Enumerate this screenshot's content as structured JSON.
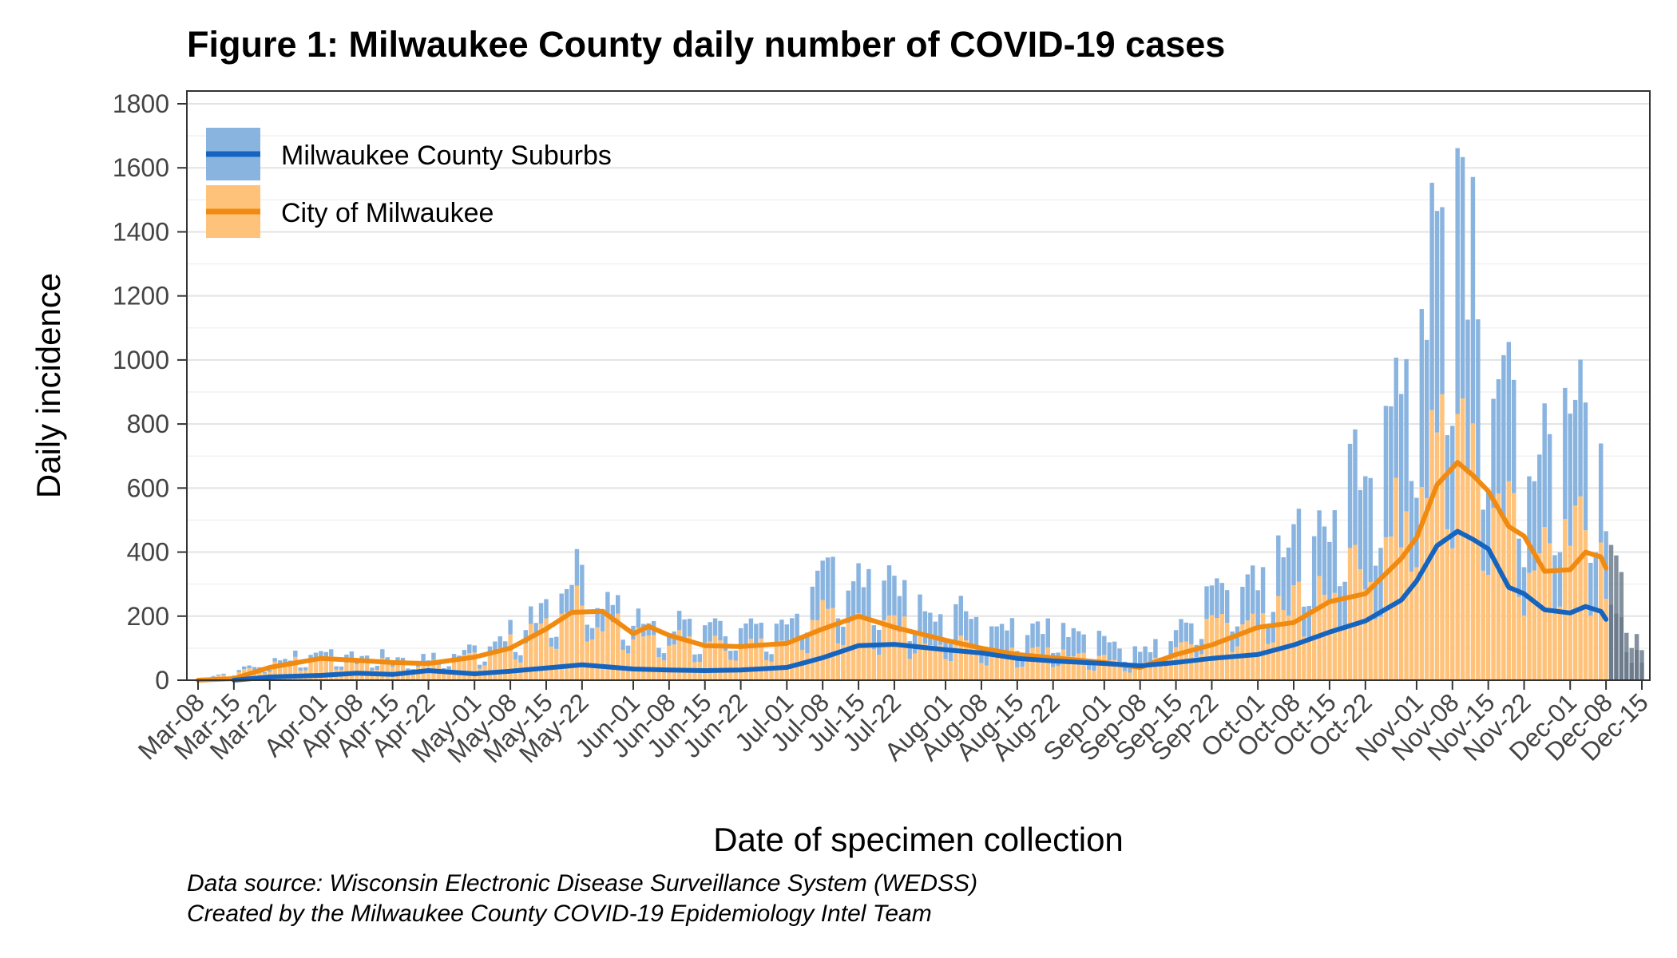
{
  "chart_data": {
    "type": "bar",
    "title": "Figure 1: Milwaukee County daily number of COVID-19 cases",
    "xlabel": "Date of specimen collection",
    "ylabel": "Daily incidence",
    "ylim": [
      0,
      1850
    ],
    "yticks": [
      0,
      200,
      400,
      600,
      800,
      1000,
      1200,
      1400,
      1600,
      1800
    ],
    "x_start": "2020-03-08",
    "x_end": "2020-12-15",
    "xtick_labels": [
      "Mar-08",
      "Mar-15",
      "Mar-22",
      "Apr-01",
      "Apr-08",
      "Apr-15",
      "Apr-22",
      "May-01",
      "May-08",
      "May-15",
      "May-22",
      "Jun-01",
      "Jun-08",
      "Jun-15",
      "Jun-22",
      "Jul-01",
      "Jul-08",
      "Jul-15",
      "Jul-22",
      "Aug-01",
      "Aug-08",
      "Aug-15",
      "Aug-22",
      "Sep-01",
      "Sep-08",
      "Sep-15",
      "Sep-22",
      "Oct-01",
      "Oct-08",
      "Oct-15",
      "Oct-22",
      "Nov-01",
      "Nov-08",
      "Nov-15",
      "Nov-22",
      "Dec-01",
      "Dec-08",
      "Dec-15"
    ],
    "stacked": true,
    "legend_position": "top-left",
    "grid": true,
    "series": [
      {
        "name": "Milwaukee County Suburbs",
        "color": "#1565c0",
        "bar_color": "#8ab4e0",
        "daily_control_points": [
          [
            "2020-03-08",
            0
          ],
          [
            "2020-03-20",
            8
          ],
          [
            "2020-03-28",
            18
          ],
          [
            "2020-04-08",
            22
          ],
          [
            "2020-04-20",
            15
          ],
          [
            "2020-05-01",
            18
          ],
          [
            "2020-05-10",
            38
          ],
          [
            "2020-05-18",
            70
          ],
          [
            "2020-05-22",
            90
          ],
          [
            "2020-06-01",
            40
          ],
          [
            "2020-06-15",
            45
          ],
          [
            "2020-07-01",
            50
          ],
          [
            "2020-07-08",
            130
          ],
          [
            "2020-07-15",
            120
          ],
          [
            "2020-07-22",
            115
          ],
          [
            "2020-08-01",
            100
          ],
          [
            "2020-08-15",
            75
          ],
          [
            "2020-09-01",
            55
          ],
          [
            "2020-09-08",
            40
          ],
          [
            "2020-09-15",
            60
          ],
          [
            "2020-09-22",
            90
          ],
          [
            "2020-10-01",
            110
          ],
          [
            "2020-10-08",
            180
          ],
          [
            "2020-10-15",
            220
          ],
          [
            "2020-10-22",
            300
          ],
          [
            "2020-10-29",
            400
          ],
          [
            "2020-11-02",
            520
          ],
          [
            "2020-11-06",
            600
          ],
          [
            "2020-11-10",
            650
          ],
          [
            "2020-11-13",
            450
          ],
          [
            "2020-11-18",
            350
          ],
          [
            "2020-11-25",
            300
          ],
          [
            "2020-12-01",
            320
          ],
          [
            "2020-12-06",
            290
          ],
          [
            "2020-12-10",
            120
          ],
          [
            "2020-12-15",
            40
          ]
        ],
        "avg_line": [
          [
            "2020-03-15",
            0
          ],
          [
            "2020-03-22",
            10
          ],
          [
            "2020-04-01",
            15
          ],
          [
            "2020-04-08",
            22
          ],
          [
            "2020-04-15",
            18
          ],
          [
            "2020-04-22",
            30
          ],
          [
            "2020-05-01",
            20
          ],
          [
            "2020-05-08",
            28
          ],
          [
            "2020-05-15",
            38
          ],
          [
            "2020-05-22",
            48
          ],
          [
            "2020-06-01",
            35
          ],
          [
            "2020-06-08",
            32
          ],
          [
            "2020-06-15",
            30
          ],
          [
            "2020-06-22",
            32
          ],
          [
            "2020-07-01",
            40
          ],
          [
            "2020-07-08",
            70
          ],
          [
            "2020-07-15",
            108
          ],
          [
            "2020-07-22",
            112
          ],
          [
            "2020-08-01",
            95
          ],
          [
            "2020-08-08",
            85
          ],
          [
            "2020-08-15",
            68
          ],
          [
            "2020-08-22",
            60
          ],
          [
            "2020-09-01",
            52
          ],
          [
            "2020-09-08",
            45
          ],
          [
            "2020-09-15",
            55
          ],
          [
            "2020-09-22",
            68
          ],
          [
            "2020-10-01",
            80
          ],
          [
            "2020-10-08",
            110
          ],
          [
            "2020-10-15",
            150
          ],
          [
            "2020-10-22",
            185
          ],
          [
            "2020-10-29",
            250
          ],
          [
            "2020-11-01",
            310
          ],
          [
            "2020-11-05",
            420
          ],
          [
            "2020-11-09",
            465
          ],
          [
            "2020-11-12",
            440
          ],
          [
            "2020-11-15",
            410
          ],
          [
            "2020-11-19",
            290
          ],
          [
            "2020-11-22",
            270
          ],
          [
            "2020-11-26",
            220
          ],
          [
            "2020-12-01",
            210
          ],
          [
            "2020-12-04",
            230
          ],
          [
            "2020-12-07",
            215
          ],
          [
            "2020-12-08",
            190
          ]
        ]
      },
      {
        "name": "City of Milwaukee",
        "color": "#f08a10",
        "bar_color": "#ffc27a",
        "daily_control_points": [
          [
            "2020-03-08",
            0
          ],
          [
            "2020-03-18",
            30
          ],
          [
            "2020-03-28",
            60
          ],
          [
            "2020-04-08",
            55
          ],
          [
            "2020-04-20",
            45
          ],
          [
            "2020-05-01",
            65
          ],
          [
            "2020-05-10",
            110
          ],
          [
            "2020-05-18",
            200
          ],
          [
            "2020-05-22",
            220
          ],
          [
            "2020-06-01",
            150
          ],
          [
            "2020-06-15",
            100
          ],
          [
            "2020-07-01",
            110
          ],
          [
            "2020-07-08",
            210
          ],
          [
            "2020-07-15",
            180
          ],
          [
            "2020-07-22",
            150
          ],
          [
            "2020-08-01",
            110
          ],
          [
            "2020-08-15",
            85
          ],
          [
            "2020-09-01",
            60
          ],
          [
            "2020-09-08",
            40
          ],
          [
            "2020-09-15",
            100
          ],
          [
            "2020-09-22",
            160
          ],
          [
            "2020-10-01",
            180
          ],
          [
            "2020-10-08",
            230
          ],
          [
            "2020-10-15",
            260
          ],
          [
            "2020-10-22",
            330
          ],
          [
            "2020-10-29",
            500
          ],
          [
            "2020-11-02",
            620
          ],
          [
            "2020-11-06",
            750
          ],
          [
            "2020-11-10",
            820
          ],
          [
            "2020-11-13",
            650
          ],
          [
            "2020-11-18",
            500
          ],
          [
            "2020-11-25",
            380
          ],
          [
            "2020-12-01",
            420
          ],
          [
            "2020-12-06",
            400
          ],
          [
            "2020-12-10",
            200
          ],
          [
            "2020-12-15",
            60
          ]
        ],
        "avg_line": [
          [
            "2020-03-08",
            0
          ],
          [
            "2020-03-15",
            5
          ],
          [
            "2020-03-22",
            40
          ],
          [
            "2020-04-01",
            68
          ],
          [
            "2020-04-08",
            62
          ],
          [
            "2020-04-15",
            55
          ],
          [
            "2020-04-22",
            52
          ],
          [
            "2020-05-01",
            72
          ],
          [
            "2020-05-08",
            100
          ],
          [
            "2020-05-15",
            160
          ],
          [
            "2020-05-20",
            212
          ],
          [
            "2020-05-26",
            215
          ],
          [
            "2020-06-01",
            145
          ],
          [
            "2020-06-04",
            168
          ],
          [
            "2020-06-08",
            140
          ],
          [
            "2020-06-15",
            108
          ],
          [
            "2020-06-22",
            105
          ],
          [
            "2020-07-01",
            115
          ],
          [
            "2020-07-08",
            160
          ],
          [
            "2020-07-15",
            200
          ],
          [
            "2020-07-22",
            165
          ],
          [
            "2020-08-01",
            125
          ],
          [
            "2020-08-08",
            100
          ],
          [
            "2020-08-15",
            80
          ],
          [
            "2020-08-22",
            70
          ],
          [
            "2020-09-01",
            55
          ],
          [
            "2020-09-08",
            40
          ],
          [
            "2020-09-15",
            80
          ],
          [
            "2020-09-22",
            110
          ],
          [
            "2020-10-01",
            165
          ],
          [
            "2020-10-08",
            180
          ],
          [
            "2020-10-15",
            245
          ],
          [
            "2020-10-22",
            270
          ],
          [
            "2020-10-29",
            380
          ],
          [
            "2020-11-01",
            445
          ],
          [
            "2020-11-05",
            610
          ],
          [
            "2020-11-09",
            680
          ],
          [
            "2020-11-12",
            640
          ],
          [
            "2020-11-15",
            590
          ],
          [
            "2020-11-19",
            480
          ],
          [
            "2020-11-22",
            450
          ],
          [
            "2020-11-26",
            340
          ],
          [
            "2020-12-01",
            345
          ],
          [
            "2020-12-04",
            400
          ],
          [
            "2020-12-07",
            385
          ],
          [
            "2020-12-08",
            350
          ]
        ]
      }
    ],
    "incomplete_period_color": "#6d7c8c",
    "incomplete_period_start": "2020-12-09"
  },
  "caption": {
    "source": "Data source: Wisconsin Electronic Disease Surveillance System (WEDSS)",
    "credit": "Created by the Milwaukee County COVID-19 Epidemiology Intel Team"
  }
}
